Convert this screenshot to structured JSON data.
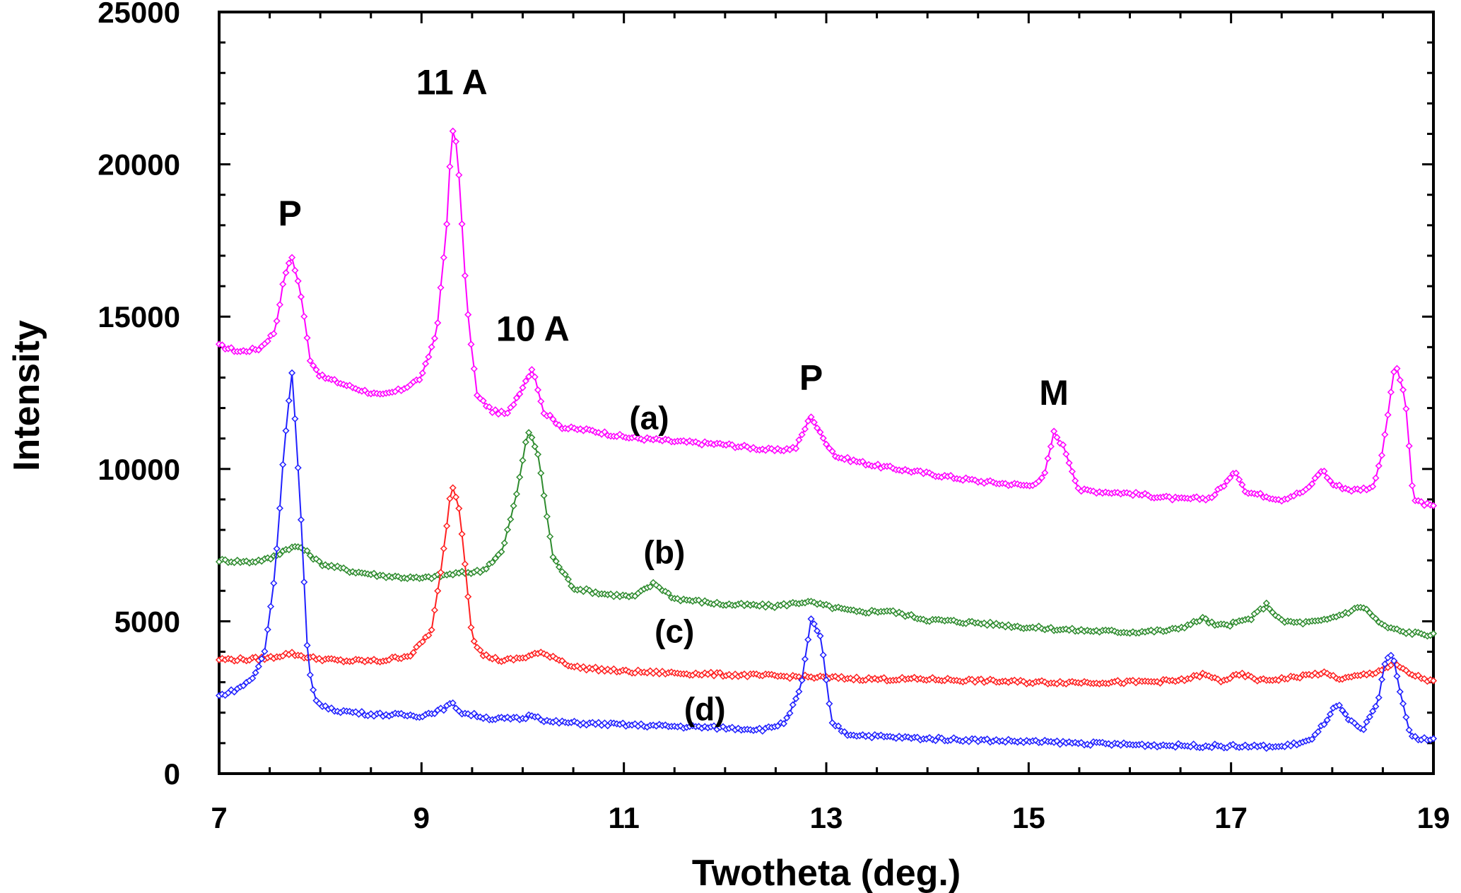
{
  "chart_data": {
    "type": "line",
    "title": "",
    "xlabel": "Twotheta (deg.)",
    "ylabel": "Intensity",
    "xlim": [
      7,
      19
    ],
    "ylim": [
      0,
      25000
    ],
    "x_ticks": [
      7,
      9,
      11,
      13,
      15,
      17,
      19
    ],
    "y_ticks": [
      0,
      5000,
      10000,
      15000,
      20000,
      25000
    ],
    "grid": false,
    "legend": "none",
    "series": [
      {
        "name": "(a)",
        "color": "#ff00ff",
        "points": [
          [
            7.0,
            14050
          ],
          [
            7.2,
            13850
          ],
          [
            7.4,
            13950
          ],
          [
            7.55,
            14500
          ],
          [
            7.65,
            16400
          ],
          [
            7.72,
            16950
          ],
          [
            7.8,
            15900
          ],
          [
            7.9,
            13600
          ],
          [
            8.0,
            13050
          ],
          [
            8.3,
            12700
          ],
          [
            8.6,
            12400
          ],
          [
            8.8,
            12600
          ],
          [
            9.0,
            13000
          ],
          [
            9.15,
            14500
          ],
          [
            9.25,
            18000
          ],
          [
            9.3,
            21200
          ],
          [
            9.35,
            20700
          ],
          [
            9.45,
            15300
          ],
          [
            9.55,
            12400
          ],
          [
            9.7,
            11900
          ],
          [
            9.85,
            11800
          ],
          [
            10.0,
            12700
          ],
          [
            10.1,
            13350
          ],
          [
            10.2,
            11900
          ],
          [
            10.4,
            11350
          ],
          [
            10.7,
            11250
          ],
          [
            11.0,
            11050
          ],
          [
            11.5,
            10900
          ],
          [
            12.0,
            10800
          ],
          [
            12.5,
            10600
          ],
          [
            12.7,
            10700
          ],
          [
            12.85,
            11750
          ],
          [
            12.95,
            11100
          ],
          [
            13.1,
            10400
          ],
          [
            13.5,
            10100
          ],
          [
            14.0,
            9850
          ],
          [
            14.5,
            9600
          ],
          [
            15.0,
            9450
          ],
          [
            15.15,
            9700
          ],
          [
            15.25,
            11200
          ],
          [
            15.35,
            10700
          ],
          [
            15.5,
            9300
          ],
          [
            16.0,
            9200
          ],
          [
            16.5,
            9000
          ],
          [
            16.8,
            9050
          ],
          [
            16.95,
            9550
          ],
          [
            17.05,
            9900
          ],
          [
            17.15,
            9250
          ],
          [
            17.5,
            9000
          ],
          [
            17.75,
            9300
          ],
          [
            17.9,
            10000
          ],
          [
            18.0,
            9500
          ],
          [
            18.2,
            9300
          ],
          [
            18.4,
            9400
          ],
          [
            18.5,
            10600
          ],
          [
            18.62,
            13450
          ],
          [
            18.72,
            12400
          ],
          [
            18.8,
            9000
          ],
          [
            19.0,
            8750
          ]
        ]
      },
      {
        "name": "(b)",
        "color": "#2e8b2e",
        "points": [
          [
            7.0,
            7000
          ],
          [
            7.3,
            6950
          ],
          [
            7.5,
            7050
          ],
          [
            7.68,
            7400
          ],
          [
            7.8,
            7450
          ],
          [
            8.0,
            6900
          ],
          [
            8.3,
            6650
          ],
          [
            8.6,
            6500
          ],
          [
            9.0,
            6400
          ],
          [
            9.3,
            6550
          ],
          [
            9.6,
            6650
          ],
          [
            9.8,
            7300
          ],
          [
            9.95,
            9300
          ],
          [
            10.05,
            11300
          ],
          [
            10.15,
            10500
          ],
          [
            10.3,
            7100
          ],
          [
            10.5,
            6100
          ],
          [
            10.8,
            5900
          ],
          [
            11.1,
            5800
          ],
          [
            11.3,
            6250
          ],
          [
            11.5,
            5750
          ],
          [
            12.0,
            5550
          ],
          [
            12.5,
            5500
          ],
          [
            12.8,
            5650
          ],
          [
            13.0,
            5500
          ],
          [
            13.3,
            5300
          ],
          [
            13.6,
            5350
          ],
          [
            14.0,
            5050
          ],
          [
            14.5,
            4950
          ],
          [
            15.0,
            4800
          ],
          [
            15.5,
            4700
          ],
          [
            16.0,
            4650
          ],
          [
            16.4,
            4700
          ],
          [
            16.6,
            4900
          ],
          [
            16.72,
            5100
          ],
          [
            16.85,
            4850
          ],
          [
            17.0,
            4900
          ],
          [
            17.2,
            5100
          ],
          [
            17.35,
            5550
          ],
          [
            17.5,
            5000
          ],
          [
            17.7,
            4950
          ],
          [
            17.9,
            5000
          ],
          [
            18.15,
            5300
          ],
          [
            18.3,
            5500
          ],
          [
            18.5,
            4850
          ],
          [
            18.7,
            4650
          ],
          [
            19.0,
            4550
          ]
        ]
      },
      {
        "name": "(c)",
        "color": "#ff2020",
        "points": [
          [
            7.0,
            3750
          ],
          [
            7.3,
            3750
          ],
          [
            7.5,
            3800
          ],
          [
            7.7,
            3950
          ],
          [
            7.9,
            3800
          ],
          [
            8.2,
            3700
          ],
          [
            8.6,
            3700
          ],
          [
            8.9,
            3900
          ],
          [
            9.1,
            4700
          ],
          [
            9.2,
            6800
          ],
          [
            9.3,
            9550
          ],
          [
            9.38,
            8600
          ],
          [
            9.5,
            4500
          ],
          [
            9.6,
            3900
          ],
          [
            9.8,
            3700
          ],
          [
            10.0,
            3800
          ],
          [
            10.15,
            3950
          ],
          [
            10.3,
            3850
          ],
          [
            10.5,
            3500
          ],
          [
            11.0,
            3350
          ],
          [
            11.5,
            3300
          ],
          [
            12.0,
            3250
          ],
          [
            12.5,
            3200
          ],
          [
            13.0,
            3150
          ],
          [
            13.5,
            3100
          ],
          [
            14.0,
            3100
          ],
          [
            14.5,
            3050
          ],
          [
            15.0,
            3000
          ],
          [
            15.5,
            3000
          ],
          [
            16.0,
            3000
          ],
          [
            16.5,
            3050
          ],
          [
            16.72,
            3250
          ],
          [
            16.9,
            3050
          ],
          [
            17.1,
            3250
          ],
          [
            17.3,
            3050
          ],
          [
            17.6,
            3150
          ],
          [
            17.9,
            3300
          ],
          [
            18.1,
            3100
          ],
          [
            18.4,
            3300
          ],
          [
            18.62,
            3600
          ],
          [
            18.75,
            3300
          ],
          [
            19.0,
            3000
          ]
        ]
      },
      {
        "name": "(d)",
        "color": "#2020ff",
        "points": [
          [
            7.0,
            2550
          ],
          [
            7.2,
            2800
          ],
          [
            7.35,
            3200
          ],
          [
            7.45,
            4000
          ],
          [
            7.55,
            6500
          ],
          [
            7.65,
            11000
          ],
          [
            7.72,
            13200
          ],
          [
            7.8,
            9000
          ],
          [
            7.88,
            3500
          ],
          [
            7.95,
            2400
          ],
          [
            8.1,
            2100
          ],
          [
            8.5,
            1950
          ],
          [
            9.0,
            1900
          ],
          [
            9.2,
            2100
          ],
          [
            9.3,
            2300
          ],
          [
            9.4,
            2000
          ],
          [
            9.7,
            1800
          ],
          [
            10.0,
            1800
          ],
          [
            10.1,
            1950
          ],
          [
            10.25,
            1700
          ],
          [
            10.6,
            1650
          ],
          [
            11.0,
            1600
          ],
          [
            11.5,
            1550
          ],
          [
            12.0,
            1500
          ],
          [
            12.4,
            1450
          ],
          [
            12.6,
            1700
          ],
          [
            12.75,
            2800
          ],
          [
            12.85,
            5100
          ],
          [
            12.95,
            4400
          ],
          [
            13.05,
            1700
          ],
          [
            13.2,
            1300
          ],
          [
            13.6,
            1200
          ],
          [
            14.0,
            1150
          ],
          [
            14.5,
            1100
          ],
          [
            15.0,
            1050
          ],
          [
            15.5,
            1000
          ],
          [
            16.0,
            950
          ],
          [
            16.5,
            920
          ],
          [
            17.0,
            900
          ],
          [
            17.5,
            880
          ],
          [
            17.8,
            1100
          ],
          [
            17.95,
            1800
          ],
          [
            18.05,
            2300
          ],
          [
            18.15,
            1800
          ],
          [
            18.3,
            1400
          ],
          [
            18.45,
            2300
          ],
          [
            18.53,
            3800
          ],
          [
            18.6,
            3900
          ],
          [
            18.68,
            2500
          ],
          [
            18.78,
            1200
          ],
          [
            19.0,
            1100
          ]
        ]
      }
    ],
    "annotations": [
      {
        "text": "P",
        "x": 7.7,
        "y": 18000
      },
      {
        "text": "11 A",
        "x": 9.3,
        "y": 22300
      },
      {
        "text": "10 A",
        "x": 10.1,
        "y": 14200
      },
      {
        "text": "P",
        "x": 12.85,
        "y": 12600
      },
      {
        "text": "M",
        "x": 15.25,
        "y": 12100
      }
    ],
    "series_labels": [
      {
        "text": "(a)",
        "x": 11.25,
        "y": 11300
      },
      {
        "text": "(b)",
        "x": 11.4,
        "y": 6900
      },
      {
        "text": "(c)",
        "x": 11.5,
        "y": 4300
      },
      {
        "text": "(d)",
        "x": 11.8,
        "y": 1750
      }
    ]
  }
}
